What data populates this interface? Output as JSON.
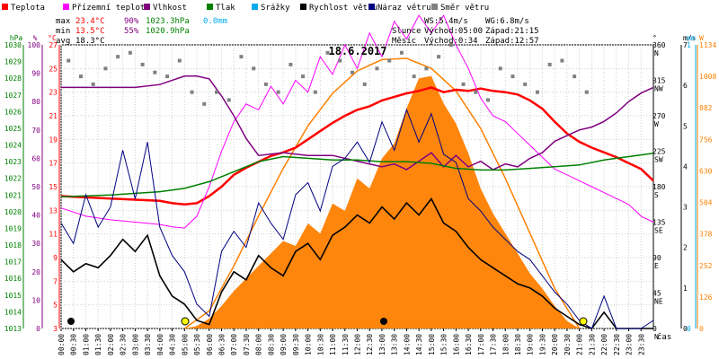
{
  "chart_data": {
    "type": "line",
    "title": "18.6.2017",
    "legend": [
      {
        "label": "Teplota",
        "color": "#ff0000"
      },
      {
        "label": "Přízemní teplota",
        "color": "#ff00ff"
      },
      {
        "label": "Vlhkost",
        "color": "#800080"
      },
      {
        "label": "Tlak",
        "color": "#008000"
      },
      {
        "label": "Srážky",
        "color": "#00aaee"
      },
      {
        "label": "Rychlost větru",
        "color": "#000000"
      },
      {
        "label": "Náraz větru",
        "color": "#000080"
      },
      {
        "label": "Směr větru",
        "color": "#808080"
      }
    ],
    "stats": {
      "max": {
        "label": "max",
        "temp": "23.4°C",
        "hum": "90%",
        "press": "1023.3hPa",
        "rain": "0.0mm"
      },
      "min": {
        "label": "min",
        "temp": "13.5°C",
        "hum": "55%",
        "press": "1020.9hPa"
      },
      "avg": {
        "label": "avg",
        "temp": "18.3°C"
      },
      "wind": {
        "ws": "WS:5.4m/s",
        "wg": "WG:6.8m/s"
      },
      "sun": {
        "label": "Slunce",
        "rise": "Východ:05:00",
        "set": "Západ:21:15"
      },
      "moon": {
        "label": "Měsíc",
        "rise": "Východ:0:34",
        "set": "Západ:12:57"
      }
    },
    "axes": {
      "hpa": {
        "unit": "hPa",
        "color": "#008000",
        "ticks": [
          "1013",
          "1014",
          "1015",
          "1016",
          "1017",
          "1018",
          "1019",
          "1020",
          "1021",
          "1022",
          "1023",
          "1024",
          "1025",
          "1026",
          "1027",
          "1028",
          "1029",
          "1030"
        ],
        "range": [
          1013,
          1030
        ]
      },
      "pct": {
        "unit": "%",
        "color": "#800080",
        "ticks": [
          "0",
          "10",
          "20",
          "30",
          "40",
          "50",
          "60",
          "70",
          "80",
          "90",
          "100"
        ],
        "range": [
          0,
          100
        ]
      },
      "celsius": {
        "unit": "°C",
        "color": "#ff0000",
        "ticks": [
          "3",
          "5",
          "7",
          "9",
          "11",
          "13",
          "15",
          "17",
          "19",
          "21",
          "23",
          "25",
          "27"
        ],
        "range": [
          3,
          27
        ]
      },
      "deg": {
        "unit": "°",
        "ticks": [
          "0",
          "45",
          "90",
          "135",
          "180",
          "225",
          "270",
          "315",
          "360"
        ],
        "range": [
          0,
          360
        ]
      },
      "compass": [
        "N",
        "NE",
        "E",
        "SE",
        "S",
        "SW",
        "W",
        "NW",
        "N"
      ],
      "ms": {
        "unit": "m/s",
        "ticks": [
          "0",
          "1",
          "2",
          "3",
          "4",
          "5",
          "6",
          "7"
        ],
        "range": [
          0,
          7
        ]
      },
      "mm": {
        "unit": "mm",
        "ticks": [
          "0",
          "1"
        ],
        "range": [
          0,
          1
        ]
      },
      "wm2": {
        "unit": "W",
        "ticks": [
          "0",
          "126",
          "252",
          "378",
          "504",
          "630",
          "756",
          "882",
          "1008",
          "1134"
        ],
        "range": [
          0,
          1134
        ]
      },
      "x": {
        "label": "čas",
        "ticks": [
          "00:00",
          "00:30",
          "01:00",
          "01:30",
          "02:00",
          "02:30",
          "03:00",
          "03:30",
          "04:00",
          "04:30",
          "05:00",
          "05:30",
          "06:00",
          "06:30",
          "07:00",
          "07:30",
          "08:00",
          "08:30",
          "09:00",
          "09:30",
          "10:00",
          "10:30",
          "11:00",
          "11:30",
          "12:00",
          "12:30",
          "13:00",
          "13:30",
          "14:00",
          "14:30",
          "15:00",
          "15:30",
          "16:00",
          "16:30",
          "17:00",
          "17:30",
          "18:00",
          "18:30",
          "19:00",
          "19:30",
          "20:00",
          "20:30",
          "21:00",
          "21:30",
          "22:00",
          "22:30",
          "23:00",
          "23:30"
        ],
        "range": [
          0,
          24
        ]
      }
    },
    "series": [
      {
        "name": "Teplota",
        "unit": "°C",
        "color": "#ff0000",
        "x": [
          0,
          1,
          2,
          3,
          4,
          4.5,
          5,
          5.5,
          6,
          6.5,
          7,
          7.5,
          8,
          8.5,
          9,
          9.5,
          10,
          10.5,
          11,
          11.5,
          12,
          12.5,
          13,
          13.5,
          14,
          14.5,
          15,
          15.5,
          16,
          16.5,
          17,
          17.5,
          18,
          18.5,
          19,
          19.5,
          20,
          20.5,
          21,
          21.5,
          22,
          22.5,
          23,
          23.5,
          24
        ],
        "y": [
          14.2,
          14.1,
          14.0,
          13.9,
          13.8,
          13.6,
          13.5,
          13.6,
          14.2,
          15.0,
          16.0,
          16.6,
          17.1,
          17.6,
          17.9,
          18.3,
          19.0,
          19.7,
          20.4,
          21.0,
          21.5,
          21.8,
          22.3,
          22.6,
          22.9,
          23.1,
          23.4,
          23.0,
          23.2,
          23.1,
          23.3,
          23.1,
          23.0,
          22.8,
          22.3,
          21.6,
          20.5,
          19.5,
          18.8,
          18.3,
          17.9,
          17.5,
          17.0,
          16.5,
          15.5
        ]
      },
      {
        "name": "Přízemní teplota",
        "unit": "°C",
        "color": "#ff00ff",
        "x": [
          0,
          1,
          2,
          3,
          4,
          4.5,
          5,
          5.5,
          6,
          6.5,
          7,
          7.5,
          8,
          8.5,
          9,
          9.5,
          10,
          10.5,
          11,
          11.5,
          12,
          12.5,
          13,
          13.5,
          14,
          14.5,
          15,
          15.5,
          16,
          16.5,
          17,
          17.5,
          18,
          18.5,
          19,
          19.5,
          20,
          20.5,
          21,
          21.5,
          22,
          22.5,
          23,
          23.5,
          24
        ],
        "y": [
          13.2,
          12.5,
          12.2,
          12.0,
          11.8,
          11.6,
          11.5,
          12.5,
          15.0,
          18.0,
          20.5,
          22.0,
          21.5,
          23.5,
          22.0,
          24.0,
          23.0,
          26.0,
          24.5,
          27.0,
          25.0,
          28.0,
          26.0,
          29.0,
          27.5,
          29.5,
          28.0,
          29.5,
          27.0,
          25.0,
          22.5,
          21.0,
          20.5,
          19.5,
          18.5,
          17.5,
          16.5,
          16.0,
          15.5,
          15.0,
          14.5,
          14.0,
          13.5,
          12.5,
          12.0
        ]
      },
      {
        "name": "Vlhkost",
        "unit": "%",
        "color": "#800080",
        "x": [
          0,
          1,
          2,
          3,
          4,
          5,
          5.5,
          6,
          6.5,
          7,
          7.5,
          8,
          9,
          10,
          11,
          12,
          13,
          13.5,
          14,
          14.5,
          15,
          15.5,
          16,
          16.5,
          17,
          17.5,
          18,
          18.5,
          19,
          19.5,
          20,
          20.5,
          21,
          21.5,
          22,
          22.5,
          23,
          23.5,
          24
        ],
        "y": [
          85,
          85,
          85,
          85,
          86,
          89,
          89,
          88,
          82,
          75,
          67,
          61,
          62,
          61,
          61,
          59,
          57,
          58,
          56,
          59,
          62,
          57,
          61,
          57,
          59,
          56,
          58,
          57,
          60,
          62,
          66,
          68,
          70,
          71,
          73,
          76,
          80,
          83,
          85
        ]
      },
      {
        "name": "Tlak",
        "unit": "hPa",
        "color": "#008000",
        "x": [
          0,
          2,
          4,
          5,
          6,
          7,
          8,
          9,
          10,
          11,
          12,
          13,
          14,
          15,
          16,
          17,
          18,
          19,
          20,
          21,
          22,
          23,
          24
        ],
        "y": [
          1020.9,
          1021.0,
          1021.2,
          1021.4,
          1021.8,
          1022.4,
          1023.0,
          1023.3,
          1023.2,
          1023.1,
          1023.1,
          1023.0,
          1023.0,
          1022.9,
          1022.6,
          1022.5,
          1022.5,
          1022.6,
          1022.7,
          1022.8,
          1023.1,
          1023.3,
          1023.5
        ]
      },
      {
        "name": "Rychlost větru",
        "unit": "m/s",
        "color": "#000000",
        "x": [
          0,
          0.5,
          1,
          1.5,
          2,
          2.5,
          3,
          3.5,
          4,
          4.5,
          5,
          5.5,
          6,
          6.5,
          7,
          7.5,
          8,
          8.5,
          9,
          9.5,
          10,
          10.5,
          11,
          11.5,
          12,
          12.5,
          13,
          13.5,
          14,
          14.5,
          15,
          15.5,
          16,
          16.5,
          17,
          17.5,
          18,
          18.5,
          19,
          19.5,
          20,
          20.5,
          21,
          21.5,
          22,
          22.5,
          23,
          23.5,
          24
        ],
        "y": [
          1.7,
          1.4,
          1.6,
          1.5,
          1.8,
          2.2,
          1.9,
          2.3,
          1.3,
          0.8,
          0.6,
          0.2,
          0.1,
          0.9,
          1.4,
          1.2,
          1.8,
          1.5,
          1.3,
          1.9,
          2.1,
          1.7,
          2.3,
          2.5,
          2.8,
          2.6,
          3.0,
          2.7,
          3.1,
          2.8,
          3.2,
          2.6,
          2.4,
          2.0,
          1.7,
          1.5,
          1.3,
          1.1,
          1.0,
          0.8,
          0.5,
          0.3,
          0.1,
          0.0,
          0.4,
          0.0,
          0.0,
          0.0,
          0.0
        ]
      },
      {
        "name": "Náraz větru",
        "unit": "m/s",
        "color": "#000080",
        "x": [
          0,
          0.5,
          1,
          1.5,
          2,
          2.5,
          3,
          3.5,
          4,
          4.5,
          5,
          5.5,
          6,
          6.5,
          7,
          7.5,
          8,
          8.5,
          9,
          9.5,
          10,
          10.5,
          11,
          11.5,
          12,
          12.5,
          13,
          13.5,
          14,
          14.5,
          15,
          15.5,
          16,
          16.5,
          17,
          17.5,
          18,
          18.5,
          19,
          19.5,
          20,
          20.5,
          21,
          21.5,
          22,
          22.5,
          23,
          23.5,
          24
        ],
        "y": [
          2.6,
          2.1,
          3.3,
          2.5,
          3.0,
          4.4,
          3.2,
          4.6,
          2.5,
          1.8,
          1.4,
          0.6,
          0.3,
          1.9,
          2.4,
          2.0,
          3.1,
          2.6,
          2.2,
          3.3,
          3.6,
          2.9,
          4.0,
          4.2,
          4.6,
          4.1,
          5.1,
          4.4,
          5.4,
          4.6,
          5.3,
          4.3,
          4.1,
          3.2,
          2.9,
          2.5,
          2.2,
          1.9,
          1.7,
          1.3,
          0.9,
          0.6,
          0.2,
          0.0,
          0.8,
          0.0,
          0.0,
          0.0,
          0.2
        ]
      },
      {
        "name": "Sluneční záření",
        "unit": "W",
        "color": "#ff8000",
        "x": [
          5,
          5.5,
          6,
          6.5,
          7,
          7.5,
          8,
          8.5,
          9,
          9.5,
          10,
          10.5,
          11,
          11.5,
          12,
          12.5,
          13,
          13.5,
          14,
          14.5,
          15,
          15.5,
          16,
          16.5,
          17,
          17.5,
          18,
          18.5,
          19,
          19.5,
          20,
          20.5,
          21
        ],
        "y": [
          0,
          10,
          40,
          90,
          150,
          200,
          250,
          300,
          350,
          330,
          420,
          380,
          500,
          470,
          600,
          560,
          680,
          740,
          880,
          1000,
          1010,
          900,
          820,
          700,
          560,
          460,
          380,
          300,
          220,
          160,
          90,
          30,
          0
        ]
      },
      {
        "name": "Max. záření",
        "unit": "W",
        "color": "#ff8000",
        "x": [
          5,
          6,
          7,
          8,
          9,
          10,
          11,
          12,
          13,
          14,
          15,
          16,
          17,
          18,
          19,
          20,
          21
        ],
        "y": [
          0,
          70,
          250,
          450,
          640,
          810,
          940,
          1030,
          1075,
          1080,
          1040,
          950,
          800,
          600,
          380,
          160,
          0
        ]
      }
    ],
    "wind_direction": {
      "name": "Směr větru",
      "unit": "°",
      "color": "#808080",
      "x": [
        0.3,
        0.8,
        1.3,
        1.8,
        2.3,
        2.8,
        3.3,
        3.8,
        4.3,
        4.8,
        5.3,
        5.8,
        6.3,
        6.8,
        7.3,
        7.8,
        8.3,
        8.8,
        9.3,
        9.8,
        10.3,
        10.8,
        11.3,
        11.8,
        12.3,
        12.8,
        13.3,
        13.8,
        14.3,
        14.8,
        15.3,
        15.8,
        16.3,
        16.8,
        17.3,
        17.8,
        18.3,
        18.8,
        19.3,
        19.8,
        20.3,
        20.8,
        21.3
      ],
      "y": [
        340,
        320,
        310,
        330,
        345,
        350,
        335,
        325,
        320,
        340,
        300,
        285,
        300,
        290,
        345,
        330,
        310,
        300,
        335,
        320,
        300,
        350,
        340,
        325,
        310,
        330,
        340,
        350,
        320,
        330,
        345,
        360,
        310,
        300,
        290,
        330,
        320,
        310,
        300,
        335,
        340,
        320,
        300
      ]
    }
  }
}
